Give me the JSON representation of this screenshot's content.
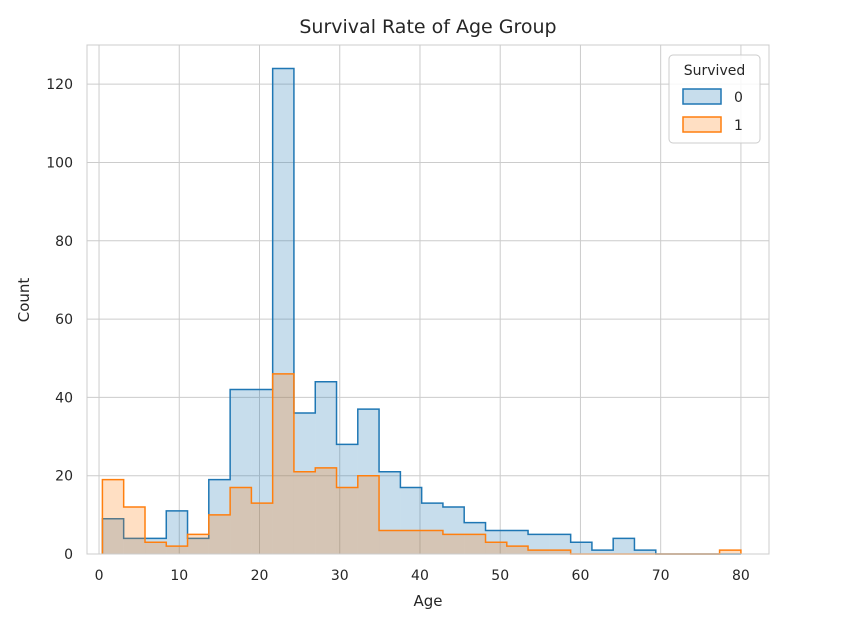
{
  "chart_data": {
    "type": "histogram-step",
    "title": "Survival Rate of Age Group",
    "xlabel": "Age",
    "ylabel": "Count",
    "xlim": [
      -1.5,
      83.5
    ],
    "ylim": [
      0,
      130
    ],
    "x_ticks": [
      0,
      10,
      20,
      30,
      40,
      50,
      60,
      70,
      80
    ],
    "y_ticks": [
      0,
      20,
      40,
      60,
      80,
      100,
      120
    ],
    "grid": true,
    "legend": {
      "title": "Survived",
      "placement": "top-right"
    },
    "bin_edges": [
      0.42,
      3.07,
      5.73,
      8.38,
      11.03,
      13.68,
      16.34,
      18.99,
      21.64,
      24.29,
      26.95,
      29.6,
      32.25,
      34.9,
      37.56,
      40.21,
      42.86,
      45.51,
      48.17,
      50.82,
      53.47,
      56.12,
      58.78,
      61.43,
      64.08,
      66.73,
      69.39,
      72.04,
      74.69,
      77.34,
      80.0
    ],
    "series": [
      {
        "name": "0",
        "color": "#1f77b4",
        "fill": "rgba(31,119,180,0.25)",
        "values": [
          9,
          4,
          4,
          11,
          4,
          19,
          42,
          42,
          124,
          36,
          44,
          28,
          37,
          21,
          17,
          13,
          12,
          8,
          6,
          6,
          5,
          5,
          3,
          1,
          4,
          1,
          0,
          0,
          0,
          0
        ]
      },
      {
        "name": "1",
        "color": "#ff7f0e",
        "fill": "rgba(255,127,14,0.25)",
        "values": [
          19,
          12,
          3,
          2,
          5,
          10,
          17,
          13,
          46,
          21,
          22,
          17,
          20,
          6,
          6,
          6,
          5,
          5,
          3,
          2,
          1,
          1,
          0,
          0,
          0,
          0,
          0,
          0,
          0,
          1
        ]
      }
    ]
  }
}
